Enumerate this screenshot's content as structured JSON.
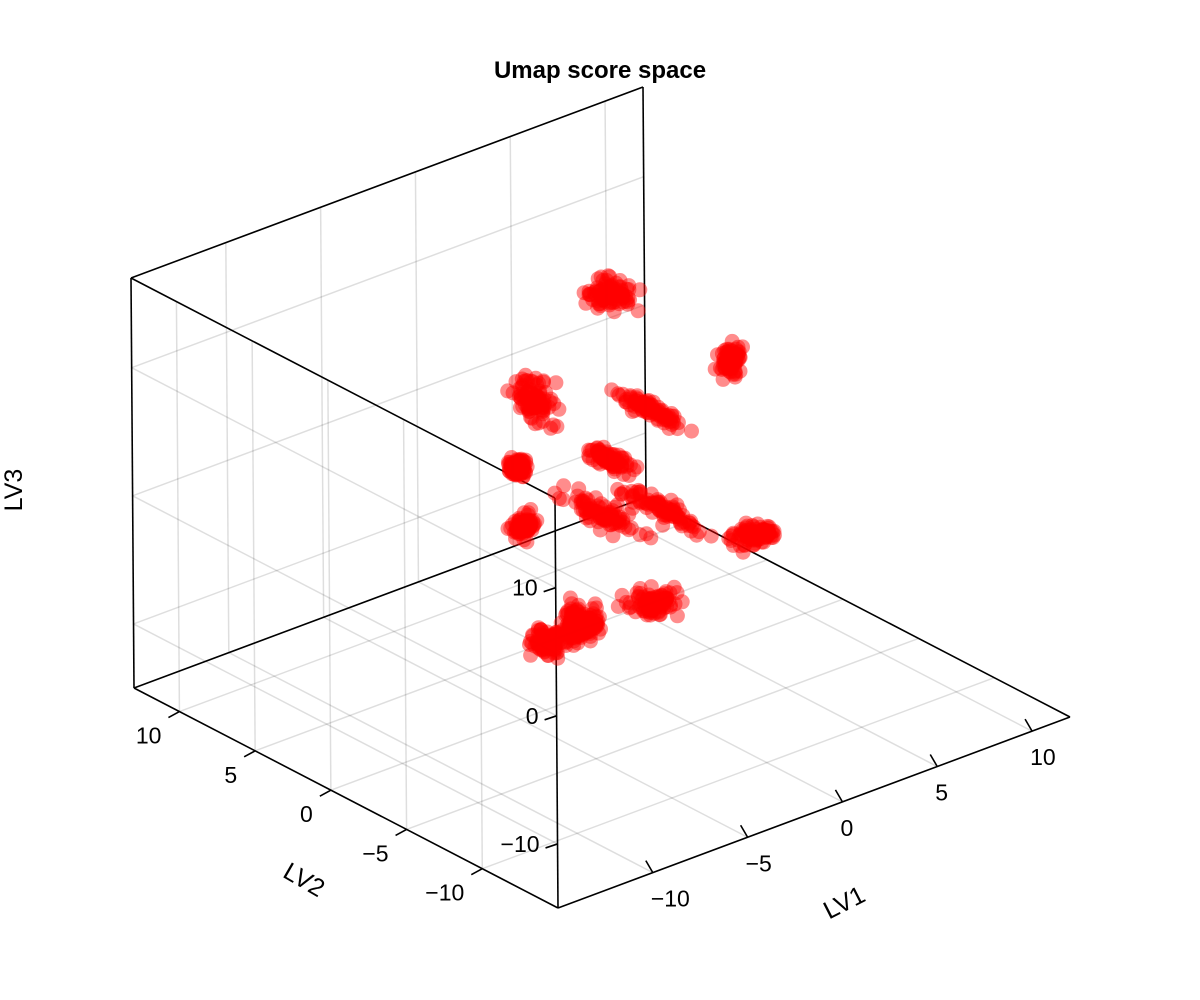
{
  "chart_data": {
    "type": "scatter",
    "title": "Umap score space",
    "xlabel": "LV1",
    "ylabel": "LV2",
    "zlabel": "LV3",
    "xlim": [
      -15,
      12
    ],
    "ylim": [
      -15,
      13
    ],
    "zlim": [
      -15,
      17
    ],
    "x_ticks": [
      {
        "value": -10,
        "label": "−10"
      },
      {
        "value": -5,
        "label": "−5"
      },
      {
        "value": 0,
        "label": "0"
      },
      {
        "value": 5,
        "label": "5"
      },
      {
        "value": 10,
        "label": "10"
      }
    ],
    "y_ticks": [
      {
        "value": 10,
        "label": "10"
      },
      {
        "value": 5,
        "label": "5"
      },
      {
        "value": 0,
        "label": "0"
      },
      {
        "value": -5,
        "label": "−5"
      },
      {
        "value": -10,
        "label": "−10"
      }
    ],
    "z_ticks": [
      {
        "value": 10,
        "label": "10"
      },
      {
        "value": 0,
        "label": "0"
      },
      {
        "value": -10,
        "label": "−10"
      }
    ],
    "grid": true,
    "marker_color": "#ff0000",
    "marker_alpha": 0.45,
    "clusters": [
      {
        "x": -6.8,
        "y": -2.2,
        "z": 7.0,
        "spread": [
          0.4,
          0.3,
          0.6
        ]
      },
      {
        "x": -5.5,
        "y": -1.0,
        "z": 1.0,
        "spread": [
          0.5,
          0.3,
          0.6
        ]
      },
      {
        "x": 3.8,
        "y": 5.0,
        "z": 10.2,
        "spread": [
          0.8,
          1.0,
          0.9
        ]
      },
      {
        "x": -4.2,
        "y": -2.5,
        "z": -6.5,
        "spread": [
          0.3,
          0.3,
          1.2
        ]
      },
      {
        "x": 5.7,
        "y": 4.0,
        "z": -7.0,
        "spread": [
          0.4,
          2.5,
          0.6
        ]
      },
      {
        "x": 4.2,
        "y": 3.0,
        "z": 2.3,
        "spread": [
          0.3,
          1.8,
          0.4
        ]
      },
      {
        "x": 0.7,
        "y": 1.2,
        "z": 1.4,
        "spread": [
          0.3,
          1.2,
          0.5
        ]
      },
      {
        "x": 9.8,
        "y": 4.5,
        "z": 2.1,
        "spread": [
          0.4,
          0.4,
          0.9
        ]
      },
      {
        "x": -3.0,
        "y": 1.5,
        "z": 8.0,
        "spread": [
          0.5,
          1.0,
          1.3
        ]
      },
      {
        "x": 1.2,
        "y": 2.0,
        "z": -3.8,
        "spread": [
          0.6,
          2.0,
          0.5
        ]
      },
      {
        "x": 3.2,
        "y": 1.5,
        "z": -11.3,
        "spread": [
          0.8,
          0.9,
          0.6
        ]
      },
      {
        "x": -1.8,
        "y": 2.2,
        "z": -12.2,
        "spread": [
          0.7,
          0.6,
          0.9
        ]
      },
      {
        "x": 9.0,
        "y": 2.0,
        "z": -9.5,
        "spread": [
          1.0,
          0.7,
          0.5
        ]
      },
      {
        "x": 0.8,
        "y": 2.8,
        "z": -12.4,
        "spread": [
          0.5,
          0.4,
          0.8
        ]
      }
    ]
  }
}
